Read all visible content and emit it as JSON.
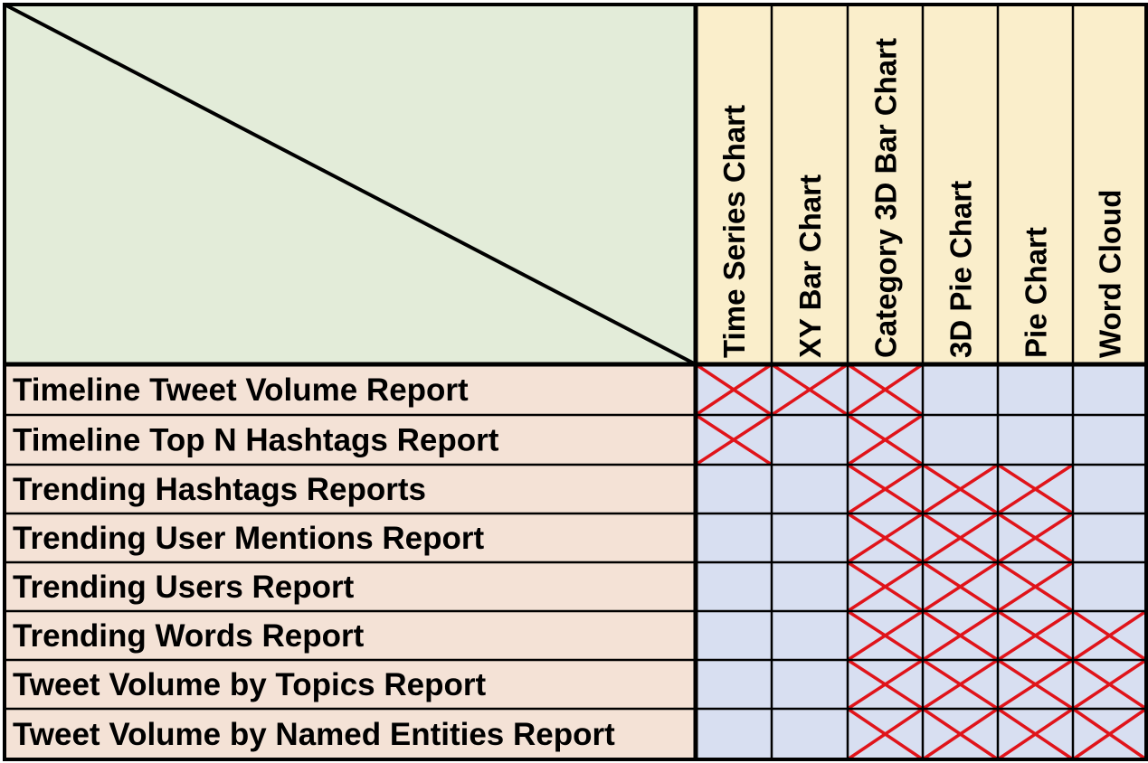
{
  "colors": {
    "corner": "#e3ecd9",
    "column_header": "#faeecb",
    "row_header": "#f4e2d6",
    "cell": "#d8dff1",
    "mark": "#e0141a",
    "grid": "#000000"
  },
  "columns": [
    {
      "label": "Time Series Chart"
    },
    {
      "label": "XY Bar Chart"
    },
    {
      "label": "Category 3D Bar Chart"
    },
    {
      "label": "3D Pie Chart"
    },
    {
      "label": "Pie Chart"
    },
    {
      "label": "Word Cloud"
    }
  ],
  "rows": [
    {
      "label": "Timeline Tweet Volume Report",
      "marks": [
        true,
        true,
        true,
        false,
        false,
        false
      ]
    },
    {
      "label": "Timeline Top N Hashtags Report",
      "marks": [
        true,
        false,
        true,
        false,
        false,
        false
      ]
    },
    {
      "label": "Trending Hashtags Reports",
      "marks": [
        false,
        false,
        true,
        true,
        true,
        false
      ]
    },
    {
      "label": "Trending User Mentions Report",
      "marks": [
        false,
        false,
        true,
        true,
        true,
        false
      ]
    },
    {
      "label": "Trending Users Report",
      "marks": [
        false,
        false,
        true,
        true,
        true,
        false
      ]
    },
    {
      "label": "Trending Words Report",
      "marks": [
        false,
        false,
        true,
        true,
        true,
        true
      ]
    },
    {
      "label": "Tweet Volume by Topics Report",
      "marks": [
        false,
        false,
        true,
        true,
        true,
        true
      ]
    },
    {
      "label": "Tweet Volume by Named Entities Report",
      "marks": [
        false,
        false,
        true,
        true,
        true,
        true
      ]
    }
  ]
}
